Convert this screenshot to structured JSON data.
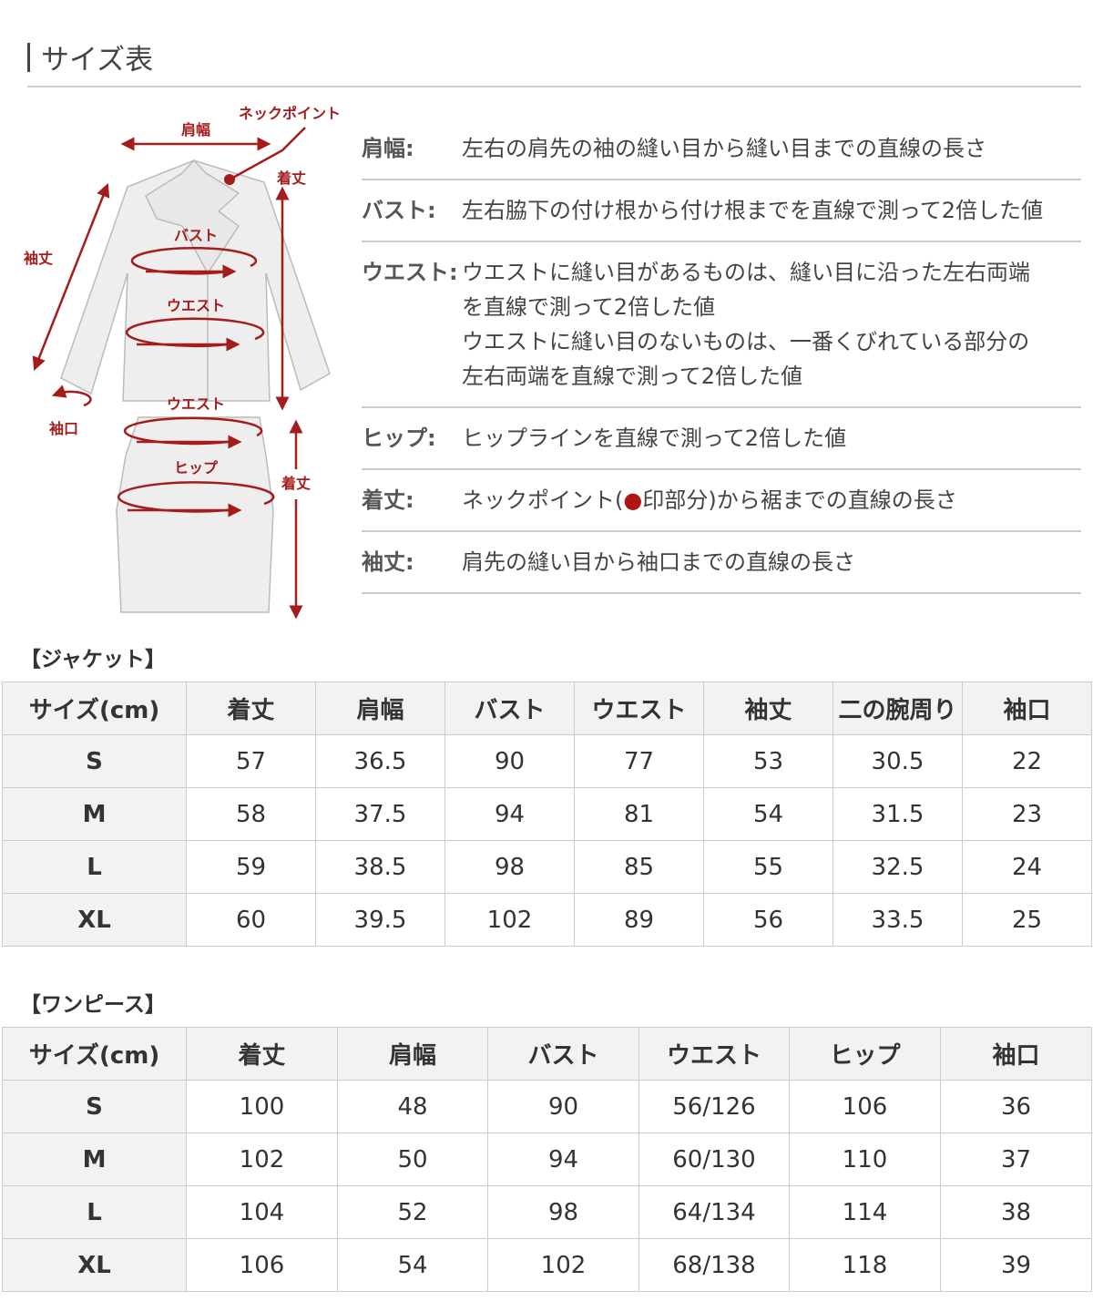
{
  "title": "サイズ表",
  "diagram": {
    "accent_color": "#a51c1c",
    "labels": {
      "shoulder": "肩幅",
      "neck_point": "ネックポイント",
      "length_jacket": "着丈",
      "sleeve": "袖丈",
      "cuff": "袖口",
      "bust": "バスト",
      "waist_jacket": "ウエスト",
      "waist_skirt": "ウエスト",
      "hip": "ヒップ",
      "length_skirt": "着丈"
    }
  },
  "definitions": [
    {
      "term": "肩幅:",
      "lines": [
        "左右の肩先の袖の縫い目から縫い目までの直線の長さ"
      ]
    },
    {
      "term": "バスト:",
      "lines": [
        "左右脇下の付け根から付け根までを直線で測って2倍した値"
      ]
    },
    {
      "term": "ウエスト:",
      "lines": [
        "ウエストに縫い目があるものは、縫い目に沿った左右両端",
        "を直線で測って2倍した値",
        "ウエストに縫い目のないものは、一番くびれている部分の",
        "左右両端を直線で測って2倍した値"
      ]
    },
    {
      "term": "ヒップ:",
      "lines": [
        "ヒップラインを直線で測って2倍した値"
      ]
    },
    {
      "term": "着丈:",
      "prefix": "ネックポイント(",
      "dot": "●",
      "suffix": "印部分)から裾までの直線の長さ"
    },
    {
      "term": "袖丈:",
      "lines": [
        "肩先の縫い目から袖口までの直線の長さ"
      ]
    }
  ],
  "jacket": {
    "label": "【ジャケット】",
    "headers": [
      "サイズ(cm)",
      "着丈",
      "肩幅",
      "バスト",
      "ウエスト",
      "袖丈",
      "二の腕周り",
      "袖口"
    ],
    "rows": [
      [
        "S",
        "57",
        "36.5",
        "90",
        "77",
        "53",
        "30.5",
        "22"
      ],
      [
        "M",
        "58",
        "37.5",
        "94",
        "81",
        "54",
        "31.5",
        "23"
      ],
      [
        "L",
        "59",
        "38.5",
        "98",
        "85",
        "55",
        "32.5",
        "24"
      ],
      [
        "XL",
        "60",
        "39.5",
        "102",
        "89",
        "56",
        "33.5",
        "25"
      ]
    ]
  },
  "dress": {
    "label": "【ワンピース】",
    "headers": [
      "サイズ(cm)",
      "着丈",
      "肩幅",
      "バスト",
      "ウエスト",
      "ヒップ",
      "袖口"
    ],
    "rows": [
      [
        "S",
        "100",
        "48",
        "90",
        "56/126",
        "106",
        "36"
      ],
      [
        "M",
        "102",
        "50",
        "94",
        "60/130",
        "110",
        "37"
      ],
      [
        "L",
        "104",
        "52",
        "98",
        "64/134",
        "114",
        "38"
      ],
      [
        "XL",
        "106",
        "54",
        "102",
        "68/138",
        "118",
        "39"
      ]
    ]
  }
}
